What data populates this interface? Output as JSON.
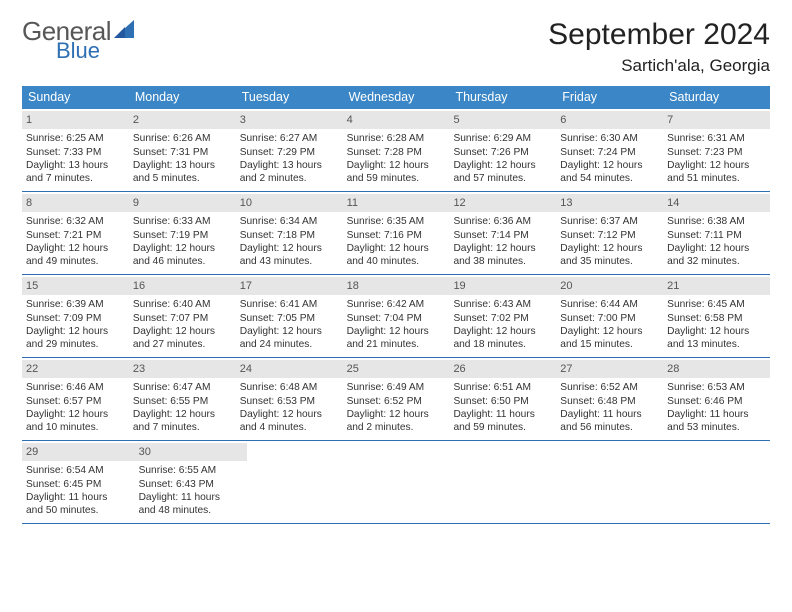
{
  "logo": {
    "text1": "General",
    "text2": "Blue",
    "sail_color": "#2f6fb3"
  },
  "header": {
    "month": "September 2024",
    "location": "Sartich'ala, Georgia"
  },
  "colors": {
    "header_bg": "#3b86c6",
    "header_text": "#ffffff",
    "daynum_bg": "#e6e6e6",
    "week_border": "#2f6fb3"
  },
  "weekdays": [
    "Sunday",
    "Monday",
    "Tuesday",
    "Wednesday",
    "Thursday",
    "Friday",
    "Saturday"
  ],
  "weeks": [
    [
      {
        "n": "1",
        "sr": "Sunrise: 6:25 AM",
        "ss": "Sunset: 7:33 PM",
        "dl1": "Daylight: 13 hours",
        "dl2": "and 7 minutes."
      },
      {
        "n": "2",
        "sr": "Sunrise: 6:26 AM",
        "ss": "Sunset: 7:31 PM",
        "dl1": "Daylight: 13 hours",
        "dl2": "and 5 minutes."
      },
      {
        "n": "3",
        "sr": "Sunrise: 6:27 AM",
        "ss": "Sunset: 7:29 PM",
        "dl1": "Daylight: 13 hours",
        "dl2": "and 2 minutes."
      },
      {
        "n": "4",
        "sr": "Sunrise: 6:28 AM",
        "ss": "Sunset: 7:28 PM",
        "dl1": "Daylight: 12 hours",
        "dl2": "and 59 minutes."
      },
      {
        "n": "5",
        "sr": "Sunrise: 6:29 AM",
        "ss": "Sunset: 7:26 PM",
        "dl1": "Daylight: 12 hours",
        "dl2": "and 57 minutes."
      },
      {
        "n": "6",
        "sr": "Sunrise: 6:30 AM",
        "ss": "Sunset: 7:24 PM",
        "dl1": "Daylight: 12 hours",
        "dl2": "and 54 minutes."
      },
      {
        "n": "7",
        "sr": "Sunrise: 6:31 AM",
        "ss": "Sunset: 7:23 PM",
        "dl1": "Daylight: 12 hours",
        "dl2": "and 51 minutes."
      }
    ],
    [
      {
        "n": "8",
        "sr": "Sunrise: 6:32 AM",
        "ss": "Sunset: 7:21 PM",
        "dl1": "Daylight: 12 hours",
        "dl2": "and 49 minutes."
      },
      {
        "n": "9",
        "sr": "Sunrise: 6:33 AM",
        "ss": "Sunset: 7:19 PM",
        "dl1": "Daylight: 12 hours",
        "dl2": "and 46 minutes."
      },
      {
        "n": "10",
        "sr": "Sunrise: 6:34 AM",
        "ss": "Sunset: 7:18 PM",
        "dl1": "Daylight: 12 hours",
        "dl2": "and 43 minutes."
      },
      {
        "n": "11",
        "sr": "Sunrise: 6:35 AM",
        "ss": "Sunset: 7:16 PM",
        "dl1": "Daylight: 12 hours",
        "dl2": "and 40 minutes."
      },
      {
        "n": "12",
        "sr": "Sunrise: 6:36 AM",
        "ss": "Sunset: 7:14 PM",
        "dl1": "Daylight: 12 hours",
        "dl2": "and 38 minutes."
      },
      {
        "n": "13",
        "sr": "Sunrise: 6:37 AM",
        "ss": "Sunset: 7:12 PM",
        "dl1": "Daylight: 12 hours",
        "dl2": "and 35 minutes."
      },
      {
        "n": "14",
        "sr": "Sunrise: 6:38 AM",
        "ss": "Sunset: 7:11 PM",
        "dl1": "Daylight: 12 hours",
        "dl2": "and 32 minutes."
      }
    ],
    [
      {
        "n": "15",
        "sr": "Sunrise: 6:39 AM",
        "ss": "Sunset: 7:09 PM",
        "dl1": "Daylight: 12 hours",
        "dl2": "and 29 minutes."
      },
      {
        "n": "16",
        "sr": "Sunrise: 6:40 AM",
        "ss": "Sunset: 7:07 PM",
        "dl1": "Daylight: 12 hours",
        "dl2": "and 27 minutes."
      },
      {
        "n": "17",
        "sr": "Sunrise: 6:41 AM",
        "ss": "Sunset: 7:05 PM",
        "dl1": "Daylight: 12 hours",
        "dl2": "and 24 minutes."
      },
      {
        "n": "18",
        "sr": "Sunrise: 6:42 AM",
        "ss": "Sunset: 7:04 PM",
        "dl1": "Daylight: 12 hours",
        "dl2": "and 21 minutes."
      },
      {
        "n": "19",
        "sr": "Sunrise: 6:43 AM",
        "ss": "Sunset: 7:02 PM",
        "dl1": "Daylight: 12 hours",
        "dl2": "and 18 minutes."
      },
      {
        "n": "20",
        "sr": "Sunrise: 6:44 AM",
        "ss": "Sunset: 7:00 PM",
        "dl1": "Daylight: 12 hours",
        "dl2": "and 15 minutes."
      },
      {
        "n": "21",
        "sr": "Sunrise: 6:45 AM",
        "ss": "Sunset: 6:58 PM",
        "dl1": "Daylight: 12 hours",
        "dl2": "and 13 minutes."
      }
    ],
    [
      {
        "n": "22",
        "sr": "Sunrise: 6:46 AM",
        "ss": "Sunset: 6:57 PM",
        "dl1": "Daylight: 12 hours",
        "dl2": "and 10 minutes."
      },
      {
        "n": "23",
        "sr": "Sunrise: 6:47 AM",
        "ss": "Sunset: 6:55 PM",
        "dl1": "Daylight: 12 hours",
        "dl2": "and 7 minutes."
      },
      {
        "n": "24",
        "sr": "Sunrise: 6:48 AM",
        "ss": "Sunset: 6:53 PM",
        "dl1": "Daylight: 12 hours",
        "dl2": "and 4 minutes."
      },
      {
        "n": "25",
        "sr": "Sunrise: 6:49 AM",
        "ss": "Sunset: 6:52 PM",
        "dl1": "Daylight: 12 hours",
        "dl2": "and 2 minutes."
      },
      {
        "n": "26",
        "sr": "Sunrise: 6:51 AM",
        "ss": "Sunset: 6:50 PM",
        "dl1": "Daylight: 11 hours",
        "dl2": "and 59 minutes."
      },
      {
        "n": "27",
        "sr": "Sunrise: 6:52 AM",
        "ss": "Sunset: 6:48 PM",
        "dl1": "Daylight: 11 hours",
        "dl2": "and 56 minutes."
      },
      {
        "n": "28",
        "sr": "Sunrise: 6:53 AM",
        "ss": "Sunset: 6:46 PM",
        "dl1": "Daylight: 11 hours",
        "dl2": "and 53 minutes."
      }
    ],
    [
      {
        "n": "29",
        "sr": "Sunrise: 6:54 AM",
        "ss": "Sunset: 6:45 PM",
        "dl1": "Daylight: 11 hours",
        "dl2": "and 50 minutes."
      },
      {
        "n": "30",
        "sr": "Sunrise: 6:55 AM",
        "ss": "Sunset: 6:43 PM",
        "dl1": "Daylight: 11 hours",
        "dl2": "and 48 minutes."
      },
      null,
      null,
      null,
      null,
      null
    ]
  ]
}
